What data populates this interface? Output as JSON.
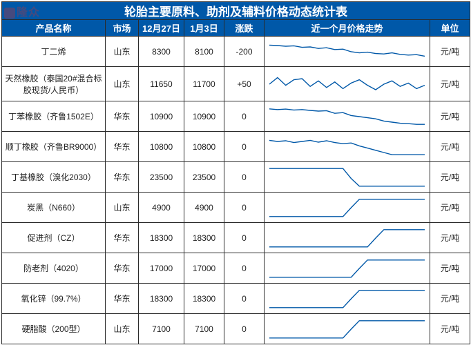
{
  "watermark": "隆众",
  "title": "轮胎主要原料、助剂及辅料价格动态统计表",
  "columns": {
    "name": "产品名称",
    "market": "市场",
    "date1": "12月27日",
    "date2": "1月3日",
    "change": "涨跌",
    "trend": "近一个月价格走势",
    "unit": "单位"
  },
  "table_style": {
    "header_bg": "#0058a8",
    "header_fg": "#ffffff",
    "border_color": "#2a2a2a",
    "cell_bg": "#ffffff",
    "spark_stroke": "#0058a8",
    "title_fontsize": 17,
    "header_fontsize": 13,
    "cell_fontsize": 12
  },
  "rows": [
    {
      "name": "丁二烯",
      "market": "山东",
      "d1": "8300",
      "d2": "8100",
      "change": "-200",
      "unit": "元/吨",
      "spark": [
        0.2,
        0.22,
        0.25,
        0.23,
        0.3,
        0.28,
        0.35,
        0.32,
        0.4,
        0.38,
        0.5,
        0.55,
        0.52,
        0.58,
        0.6,
        0.55,
        0.62,
        0.65,
        0.63,
        0.7
      ]
    },
    {
      "name": "天然橡胶（泰国20#混合标胶现货/人民币）",
      "market": "山东",
      "d1": "11650",
      "d2": "11700",
      "change": "+50",
      "unit": "元/吨",
      "spark": [
        0.5,
        0.2,
        0.55,
        0.3,
        0.25,
        0.6,
        0.35,
        0.65,
        0.4,
        0.7,
        0.45,
        0.3,
        0.55,
        0.75,
        0.5,
        0.35,
        0.6,
        0.45,
        0.7,
        0.55
      ]
    },
    {
      "name": "丁苯橡胶（齐鲁1502E）",
      "market": "华东",
      "d1": "10900",
      "d2": "10900",
      "change": "0",
      "unit": "元/吨",
      "spark": [
        0.15,
        0.18,
        0.16,
        0.2,
        0.18,
        0.22,
        0.25,
        0.23,
        0.35,
        0.32,
        0.45,
        0.5,
        0.55,
        0.6,
        0.7,
        0.75,
        0.8,
        0.82,
        0.85,
        0.85
      ]
    },
    {
      "name": "顺丁橡胶（齐鲁BR9000）",
      "market": "华东",
      "d1": "10800",
      "d2": "10800",
      "change": "0",
      "unit": "元/吨",
      "spark": [
        0.2,
        0.25,
        0.22,
        0.3,
        0.25,
        0.2,
        0.28,
        0.22,
        0.3,
        0.35,
        0.32,
        0.45,
        0.55,
        0.65,
        0.75,
        0.85,
        0.85,
        0.85,
        0.85,
        0.85
      ]
    },
    {
      "name": "丁基橡胶（溴化2030）",
      "market": "华东",
      "d1": "23500",
      "d2": "23500",
      "change": "0",
      "unit": "元/吨",
      "spark": [
        0.1,
        0.1,
        0.1,
        0.1,
        0.1,
        0.1,
        0.1,
        0.1,
        0.1,
        0.1,
        0.55,
        0.9,
        0.9,
        0.9,
        0.9,
        0.9,
        0.9,
        0.9,
        0.9,
        0.9
      ]
    },
    {
      "name": "炭黑（N660）",
      "market": "山东",
      "d1": "4900",
      "d2": "4900",
      "change": "0",
      "unit": "元/吨",
      "spark": [
        0.9,
        0.9,
        0.9,
        0.9,
        0.9,
        0.9,
        0.9,
        0.9,
        0.9,
        0.9,
        0.5,
        0.12,
        0.12,
        0.12,
        0.12,
        0.12,
        0.12,
        0.12,
        0.12,
        0.12
      ]
    },
    {
      "name": "促进剂（CZ）",
      "market": "华东",
      "d1": "18300",
      "d2": "18300",
      "change": "0",
      "unit": "元/吨",
      "spark": [
        0.9,
        0.9,
        0.9,
        0.9,
        0.9,
        0.9,
        0.9,
        0.9,
        0.9,
        0.9,
        0.9,
        0.9,
        0.9,
        0.5,
        0.12,
        0.12,
        0.12,
        0.12,
        0.12,
        0.12
      ]
    },
    {
      "name": "防老剂（4020）",
      "market": "华东",
      "d1": "17000",
      "d2": "17000",
      "change": "0",
      "unit": "元/吨",
      "spark": [
        0.9,
        0.9,
        0.9,
        0.9,
        0.9,
        0.9,
        0.9,
        0.9,
        0.9,
        0.9,
        0.9,
        0.5,
        0.12,
        0.12,
        0.12,
        0.12,
        0.12,
        0.12,
        0.12,
        0.12
      ]
    },
    {
      "name": "氧化锌（99.7%）",
      "market": "华东",
      "d1": "18300",
      "d2": "18300",
      "change": "0",
      "unit": "元/吨",
      "spark": [
        0.9,
        0.9,
        0.9,
        0.9,
        0.9,
        0.9,
        0.9,
        0.9,
        0.9,
        0.9,
        0.5,
        0.12,
        0.12,
        0.12,
        0.12,
        0.12,
        0.12,
        0.12,
        0.12,
        0.12
      ]
    },
    {
      "name": "硬脂酸（200型）",
      "market": "山东",
      "d1": "7100",
      "d2": "7100",
      "change": "0",
      "unit": "元/吨",
      "spark": [
        0.9,
        0.9,
        0.9,
        0.9,
        0.9,
        0.9,
        0.9,
        0.9,
        0.9,
        0.9,
        0.5,
        0.12,
        0.12,
        0.12,
        0.12,
        0.12,
        0.12,
        0.12,
        0.12,
        0.12
      ]
    }
  ]
}
